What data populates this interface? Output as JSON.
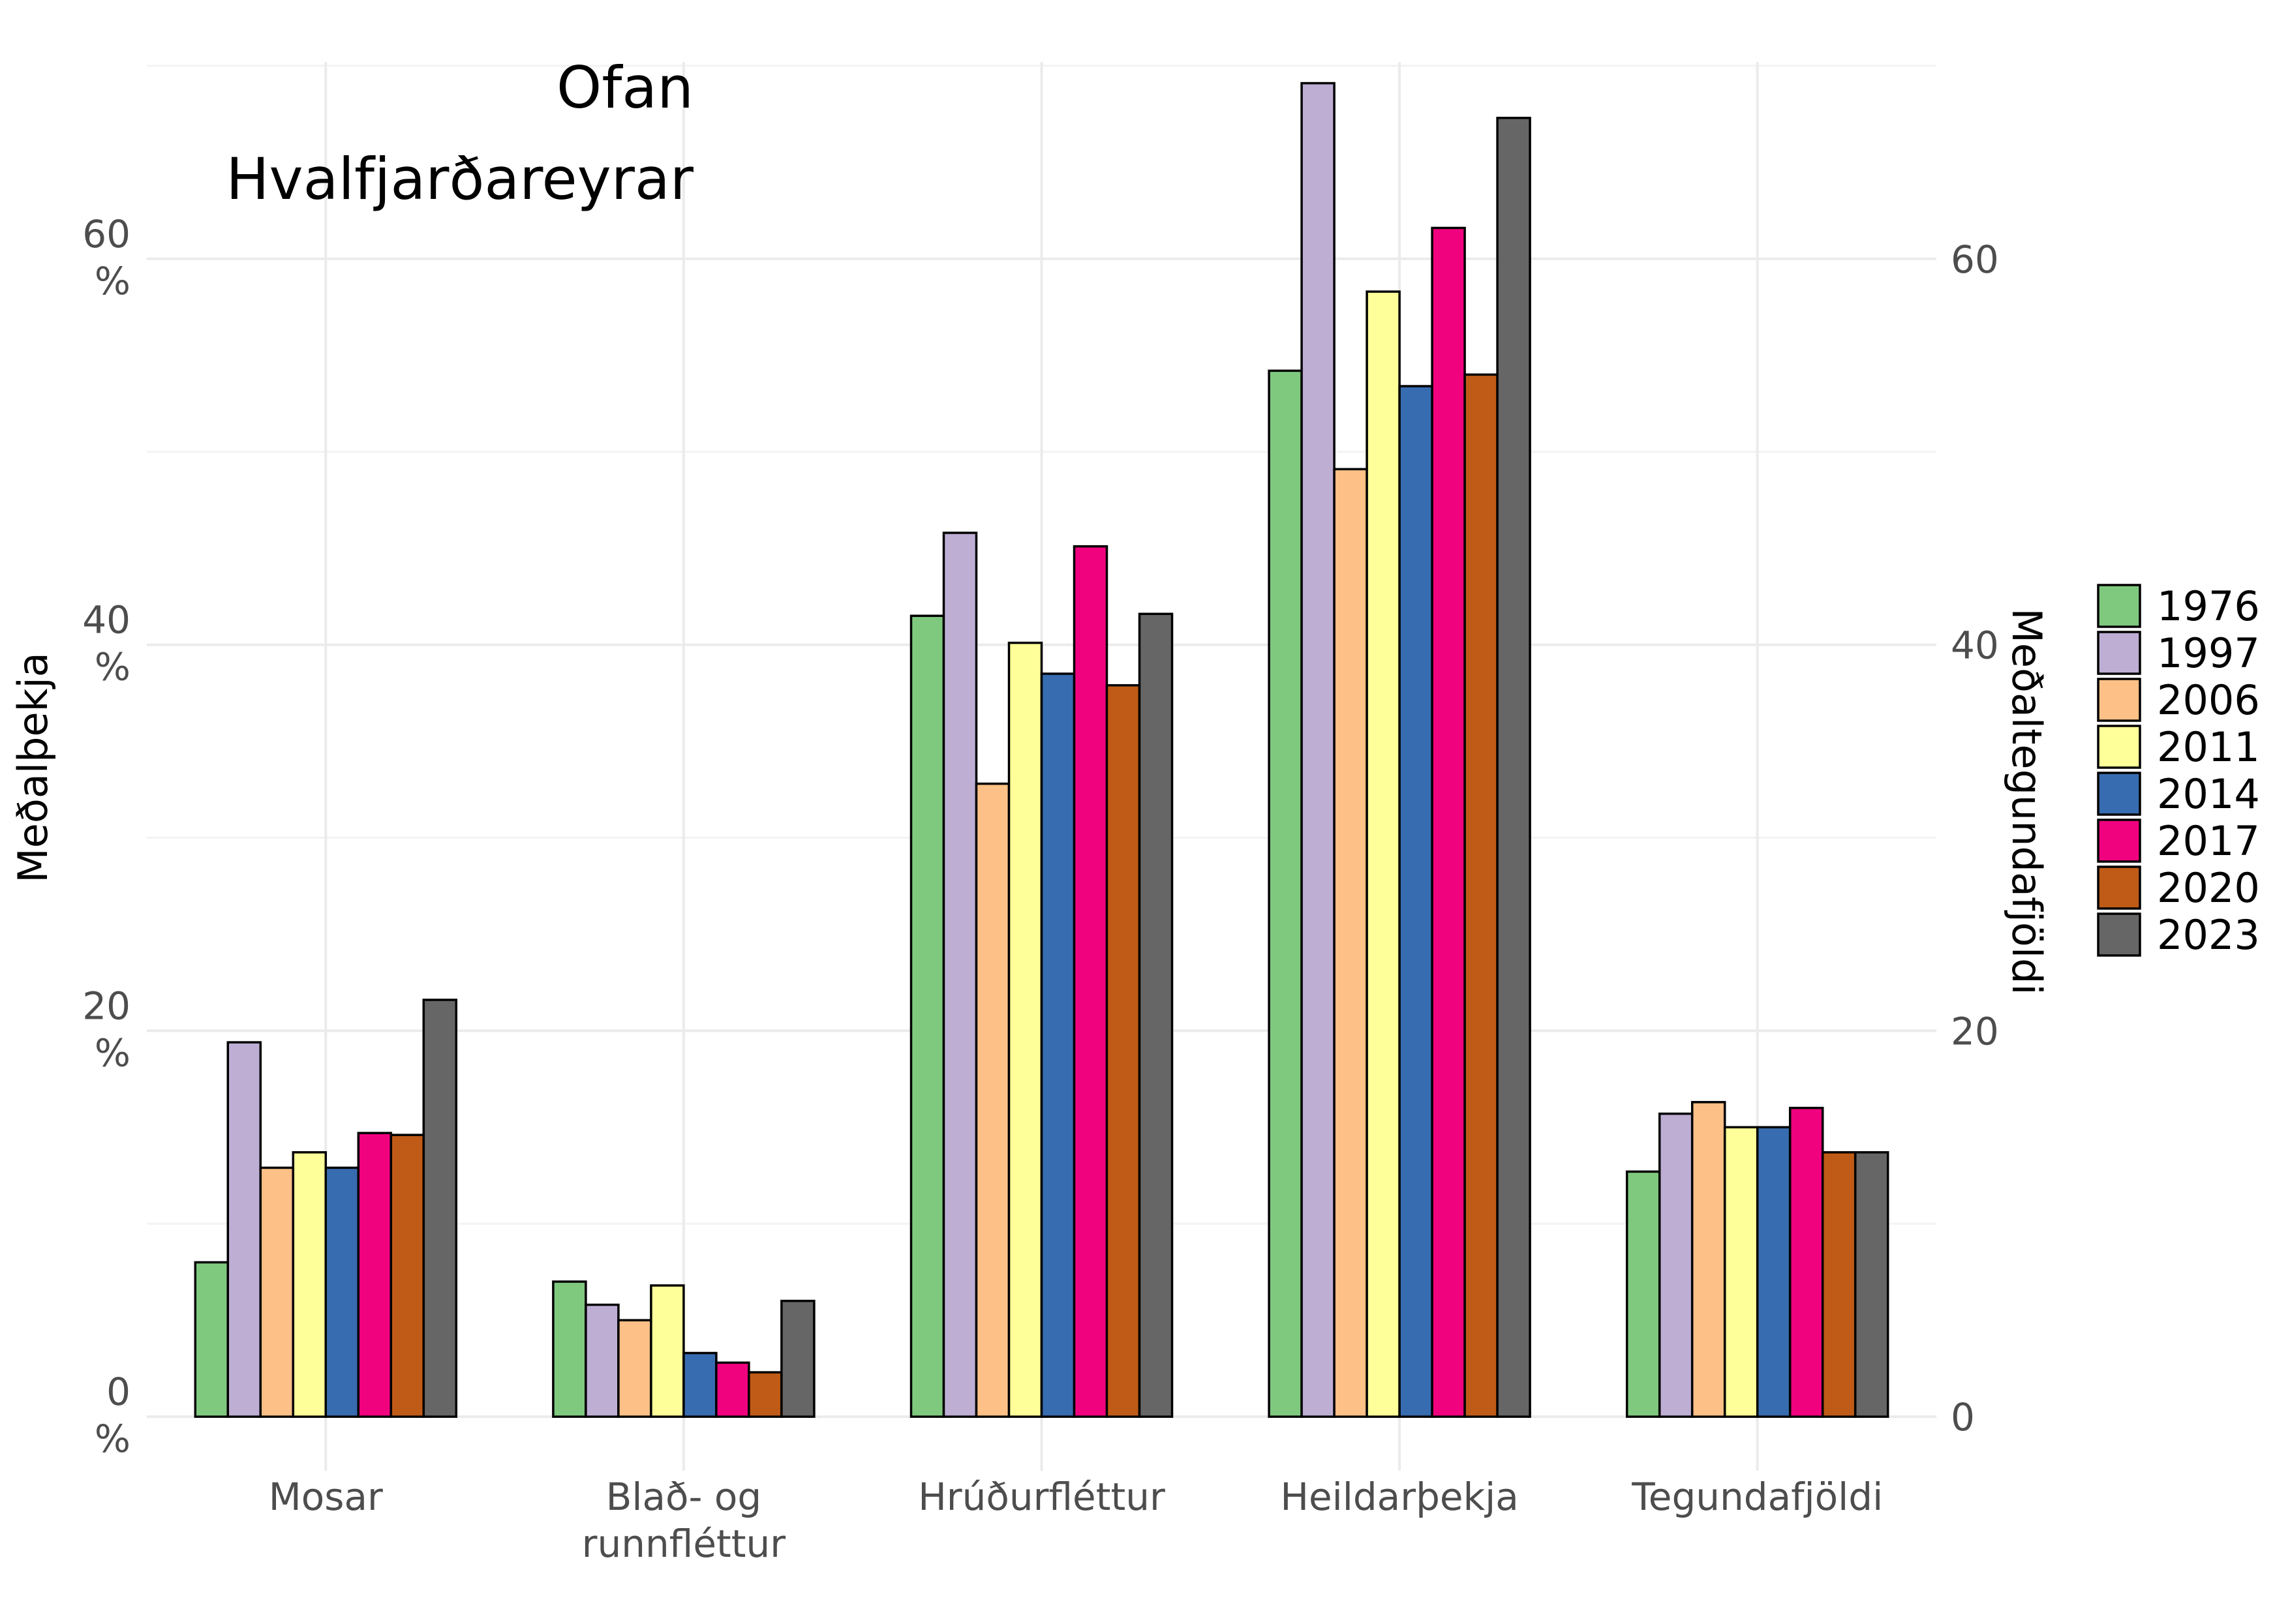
{
  "chart_data": {
    "type": "bar",
    "title_lines": [
      "Ofan",
      "Hvalfjarðareyrar"
    ],
    "ylabel": "Meðalþekja",
    "ylabel_right": "Meðaltegundafjöldi",
    "ylim": [
      -2.8,
      70.2
    ],
    "y_ticks": [
      {
        "value": 0,
        "label_lines": [
          "0",
          "%"
        ]
      },
      {
        "value": 20,
        "label_lines": [
          "20",
          "%"
        ]
      },
      {
        "value": 40,
        "label_lines": [
          "40",
          "%"
        ]
      },
      {
        "value": 60,
        "label_lines": [
          "60",
          "%"
        ]
      }
    ],
    "y_ticks_right": [
      {
        "value": 0,
        "label": "0"
      },
      {
        "value": 20,
        "label": "20"
      },
      {
        "value": 40,
        "label": "40"
      },
      {
        "value": 60,
        "label": "60"
      }
    ],
    "categories": [
      {
        "label_lines": [
          "Mosar"
        ]
      },
      {
        "label_lines": [
          "Blað- og",
          "runnfléttur"
        ]
      },
      {
        "label_lines": [
          "Hrúðurfléttur"
        ]
      },
      {
        "label_lines": [
          "Heildarþekja"
        ]
      },
      {
        "label_lines": [
          "Tegundafjöldi"
        ]
      }
    ],
    "series": [
      {
        "name": "1976",
        "color": "#7fc97f",
        "values": [
          8.0,
          7.0,
          41.5,
          54.2,
          12.7
        ]
      },
      {
        "name": "1997",
        "color": "#beaed4",
        "values": [
          19.4,
          5.8,
          45.8,
          69.1,
          15.7
        ]
      },
      {
        "name": "2006",
        "color": "#fdc086",
        "values": [
          12.9,
          5.0,
          32.8,
          49.1,
          16.3
        ]
      },
      {
        "name": "2011",
        "color": "#ffff99",
        "values": [
          13.7,
          6.8,
          40.1,
          58.3,
          15.0
        ]
      },
      {
        "name": "2014",
        "color": "#386cb0",
        "values": [
          12.9,
          3.3,
          38.5,
          53.4,
          15.0
        ]
      },
      {
        "name": "2017",
        "color": "#f0027f",
        "values": [
          14.7,
          2.8,
          45.1,
          61.6,
          16.0
        ]
      },
      {
        "name": "2020",
        "color": "#bf5b17",
        "values": [
          14.6,
          2.3,
          37.9,
          54.0,
          13.7
        ]
      },
      {
        "name": "2023",
        "color": "#666666",
        "values": [
          21.6,
          6.0,
          41.6,
          67.3,
          13.7
        ]
      }
    ],
    "grid": true,
    "legend_position": "right"
  }
}
